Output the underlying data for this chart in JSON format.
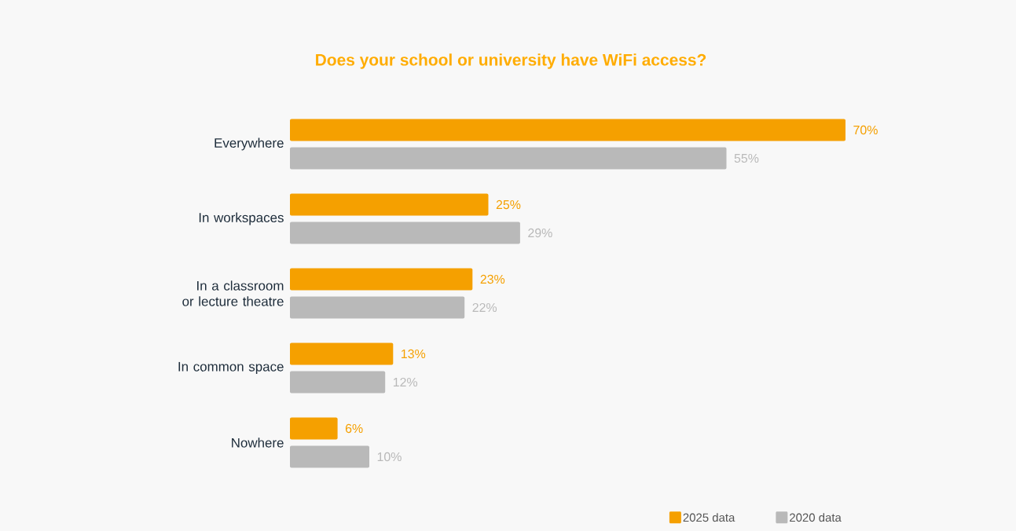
{
  "chart_data": {
    "type": "bar",
    "orientation": "horizontal",
    "title": "Does your school or university have WiFi access?",
    "categories": [
      "Everywhere",
      "In workspaces",
      "In a classroom or lecture theatre",
      "In common space",
      "Nowhere"
    ],
    "series": [
      {
        "name": "2025 data",
        "color": "#f5a000",
        "values": [
          70,
          25,
          23,
          13,
          6
        ],
        "value_labels": [
          "70%",
          "25%",
          "23%",
          "13%",
          "6%"
        ]
      },
      {
        "name": "2020 data",
        "color": "#b9b9b9",
        "values": [
          55,
          29,
          22,
          12,
          10
        ],
        "value_labels": [
          "55%",
          "29%",
          "22%",
          "12%",
          "10%"
        ]
      }
    ],
    "legend": "bottom right"
  }
}
